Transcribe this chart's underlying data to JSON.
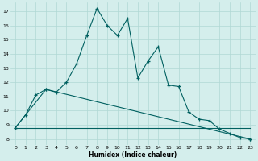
{
  "xlabel": "Humidex (Indice chaleur)",
  "background_color": "#d4eeec",
  "grid_color": "#b0d8d5",
  "line_color": "#006060",
  "xlim": [
    -0.5,
    23.5
  ],
  "ylim": [
    7.6,
    17.6
  ],
  "xticks": [
    0,
    1,
    2,
    3,
    4,
    5,
    6,
    7,
    8,
    9,
    10,
    11,
    12,
    13,
    14,
    15,
    16,
    17,
    18,
    19,
    20,
    21,
    22,
    23
  ],
  "yticks": [
    8,
    9,
    10,
    11,
    12,
    13,
    14,
    15,
    16,
    17
  ],
  "line1_x": [
    0,
    1,
    2,
    3,
    4,
    5,
    6,
    7,
    8,
    9,
    10,
    11,
    12,
    13,
    14,
    15,
    16,
    17,
    18,
    19,
    20,
    21,
    22,
    23
  ],
  "line1_y": [
    8.8,
    9.7,
    11.1,
    11.5,
    11.3,
    12.0,
    13.3,
    15.3,
    17.2,
    16.0,
    15.3,
    16.5,
    12.3,
    13.5,
    14.5,
    11.8,
    11.7,
    9.9,
    9.4,
    9.3,
    8.7,
    8.4,
    8.1,
    8.0
  ],
  "line2_x": [
    0,
    3,
    23
  ],
  "line2_y": [
    8.8,
    11.5,
    8.0
  ],
  "line3_x": [
    0,
    23
  ],
  "line3_y": [
    8.8,
    8.8
  ]
}
